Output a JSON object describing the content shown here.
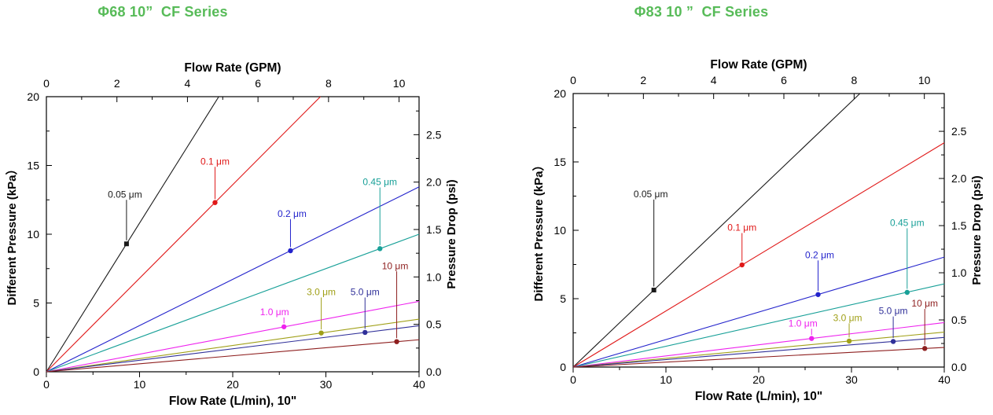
{
  "page": {
    "background": "#ffffff"
  },
  "chart_data": [
    {
      "id": "phi68-10in-cf",
      "type": "line",
      "title": "Φ68 10”  CF Series",
      "title_color": "#57bb58",
      "frame_color": "#000000",
      "grid": "off",
      "axes": {
        "bottom": {
          "label": "Flow Rate (L/min), 10\"",
          "min": 0,
          "max": 40,
          "major": [
            0,
            10,
            20,
            30,
            40
          ],
          "major_labels": [
            "0",
            "10",
            "20",
            "30",
            "40"
          ],
          "minor": [
            5,
            15,
            25,
            35
          ]
        },
        "top": {
          "label": "Flow Rate (GPM)",
          "lmin_per_gpm": 3.78541,
          "major": [
            0,
            2,
            4,
            6,
            8,
            10
          ],
          "major_labels": [
            "0",
            "2",
            "4",
            "6",
            "8",
            "10"
          ],
          "minor": [
            1,
            3,
            5,
            7,
            9
          ]
        },
        "left": {
          "label": "Different Pressure (kPa）",
          "min": 0,
          "max": 20,
          "major": [
            0,
            5,
            10,
            15,
            20
          ],
          "major_labels": [
            "0",
            "5",
            "10",
            "15",
            "20"
          ],
          "minor": [
            2.5,
            7.5,
            12.5,
            17.5
          ]
        },
        "right": {
          "label": "Pressure Drop (psi)",
          "kpa_per_psi": 6.89476,
          "major": [
            0,
            0.5,
            1,
            1.5,
            2,
            2.5
          ],
          "major_labels": [
            "0.0",
            "0.5",
            "1.0",
            "1.5",
            "2.0",
            "2.5"
          ],
          "minor": [
            0.25,
            0.75,
            1.25,
            1.75,
            2.25,
            2.75
          ]
        }
      },
      "series": [
        {
          "name": "0.05 μm",
          "color": "#1a1a1a",
          "marker": "square",
          "slope_kpa_per_lmin": 1.081,
          "marked_point": {
            "flow_lmin": 8.6,
            "pressure_kpa": 9.3
          },
          "label_y_kpa": 12.9,
          "label_dx": -2
        },
        {
          "name": "0.1 μm",
          "color": "#e01818",
          "marker": "circle",
          "slope_kpa_per_lmin": 0.68,
          "marked_point": {
            "flow_lmin": 18.1,
            "pressure_kpa": 12.3
          },
          "label_y_kpa": 15.3,
          "label_dx": 0
        },
        {
          "name": "0.2 μm",
          "color": "#2424cc",
          "marker": "circle",
          "slope_kpa_per_lmin": 0.336,
          "marked_point": {
            "flow_lmin": 26.2,
            "pressure_kpa": 8.8
          },
          "label_y_kpa": 11.5,
          "label_dx": 2
        },
        {
          "name": "0.45 μm",
          "color": "#18a098",
          "marker": "circle",
          "slope_kpa_per_lmin": 0.25,
          "marked_point": {
            "flow_lmin": 35.8,
            "pressure_kpa": 8.95
          },
          "label_y_kpa": 13.8,
          "label_dx": 0
        },
        {
          "name": "1.0 μm",
          "color": "#ee22ee",
          "marker": "circle",
          "slope_kpa_per_lmin": 0.128,
          "marked_point": {
            "flow_lmin": 25.5,
            "pressure_kpa": 3.27
          },
          "label_y_kpa": 4.35,
          "label_dx": -12
        },
        {
          "name": "3.0 μm",
          "color": "#a0a018",
          "marker": "circle",
          "slope_kpa_per_lmin": 0.0956,
          "marked_point": {
            "flow_lmin": 29.5,
            "pressure_kpa": 2.82
          },
          "label_y_kpa": 5.8,
          "label_dx": 0
        },
        {
          "name": "5.0 μm",
          "color": "#303099",
          "marker": "circle",
          "slope_kpa_per_lmin": 0.0836,
          "marked_point": {
            "flow_lmin": 34.2,
            "pressure_kpa": 2.86
          },
          "label_y_kpa": 5.8,
          "label_dx": 0
        },
        {
          "name": "10 μm",
          "color": "#8e1f1f",
          "marker": "circle",
          "slope_kpa_per_lmin": 0.0582,
          "marked_point": {
            "flow_lmin": 37.6,
            "pressure_kpa": 2.19
          },
          "label_y_kpa": 7.7,
          "label_dx": -2
        }
      ]
    },
    {
      "id": "phi83-10in-cf",
      "type": "line",
      "title": "Φ83 10 ”  CF Series",
      "title_color": "#57bb58",
      "frame_color": "#000000",
      "grid": "off",
      "axes": {
        "bottom": {
          "label": "Flow Rate (L/min), 10\"",
          "min": 0,
          "max": 40,
          "major": [
            0,
            10,
            20,
            30,
            40
          ],
          "major_labels": [
            "0",
            "10",
            "20",
            "30",
            "40"
          ],
          "minor": [
            5,
            15,
            25,
            35
          ]
        },
        "top": {
          "label": "Flow Rate (GPM)",
          "lmin_per_gpm": 3.78541,
          "major": [
            0,
            2,
            4,
            6,
            8,
            10
          ],
          "major_labels": [
            "0",
            "2",
            "4",
            "6",
            "8",
            "10"
          ],
          "minor": [
            1,
            3,
            5,
            7,
            9
          ]
        },
        "left": {
          "label": "Different Pressure (kPa）",
          "min": 0,
          "max": 20,
          "major": [
            0,
            5,
            10,
            15,
            20
          ],
          "major_labels": [
            "0",
            "5",
            "10",
            "15",
            "20"
          ],
          "minor": [
            2.5,
            7.5,
            12.5,
            17.5
          ]
        },
        "right": {
          "label": "Pressure Drop (psi)",
          "kpa_per_psi": 6.89476,
          "major": [
            0,
            0.5,
            1,
            1.5,
            2,
            2.5
          ],
          "major_labels": [
            "0.0",
            "0.5",
            "1.0",
            "1.5",
            "2.0",
            "2.5"
          ],
          "minor": [
            0.25,
            0.75,
            1.25,
            1.75,
            2.25,
            2.75
          ]
        }
      },
      "series": [
        {
          "name": "0.05 μm",
          "color": "#1a1a1a",
          "marker": "square",
          "slope_kpa_per_lmin": 0.647,
          "marked_point": {
            "flow_lmin": 8.7,
            "pressure_kpa": 5.63
          },
          "label_y_kpa": 12.65,
          "label_dx": -4
        },
        {
          "name": "0.1 μm",
          "color": "#e01818",
          "marker": "circle",
          "slope_kpa_per_lmin": 0.41,
          "marked_point": {
            "flow_lmin": 18.2,
            "pressure_kpa": 7.47
          },
          "label_y_kpa": 10.2,
          "label_dx": 0
        },
        {
          "name": "0.2 μm",
          "color": "#2424cc",
          "marker": "circle",
          "slope_kpa_per_lmin": 0.201,
          "marked_point": {
            "flow_lmin": 26.4,
            "pressure_kpa": 5.3
          },
          "label_y_kpa": 8.2,
          "label_dx": 2
        },
        {
          "name": "0.45 μm",
          "color": "#18a098",
          "marker": "circle",
          "slope_kpa_per_lmin": 0.152,
          "marked_point": {
            "flow_lmin": 36.0,
            "pressure_kpa": 5.46
          },
          "label_y_kpa": 10.55,
          "label_dx": 0
        },
        {
          "name": "1.0 μm",
          "color": "#ee22ee",
          "marker": "circle",
          "slope_kpa_per_lmin": 0.0813,
          "marked_point": {
            "flow_lmin": 25.7,
            "pressure_kpa": 2.09
          },
          "label_y_kpa": 3.2,
          "label_dx": -11
        },
        {
          "name": "3.0 μm",
          "color": "#a0a018",
          "marker": "circle",
          "slope_kpa_per_lmin": 0.0639,
          "marked_point": {
            "flow_lmin": 29.75,
            "pressure_kpa": 1.9
          },
          "label_y_kpa": 3.6,
          "label_dx": -2
        },
        {
          "name": "5.0 μm",
          "color": "#303099",
          "marker": "circle",
          "slope_kpa_per_lmin": 0.0542,
          "marked_point": {
            "flow_lmin": 34.5,
            "pressure_kpa": 1.87
          },
          "label_y_kpa": 4.1,
          "label_dx": 0
        },
        {
          "name": "10 μm",
          "color": "#8e1f1f",
          "marker": "circle",
          "slope_kpa_per_lmin": 0.0359,
          "marked_point": {
            "flow_lmin": 37.9,
            "pressure_kpa": 1.36
          },
          "label_y_kpa": 4.65,
          "label_dx": 0
        }
      ]
    }
  ]
}
